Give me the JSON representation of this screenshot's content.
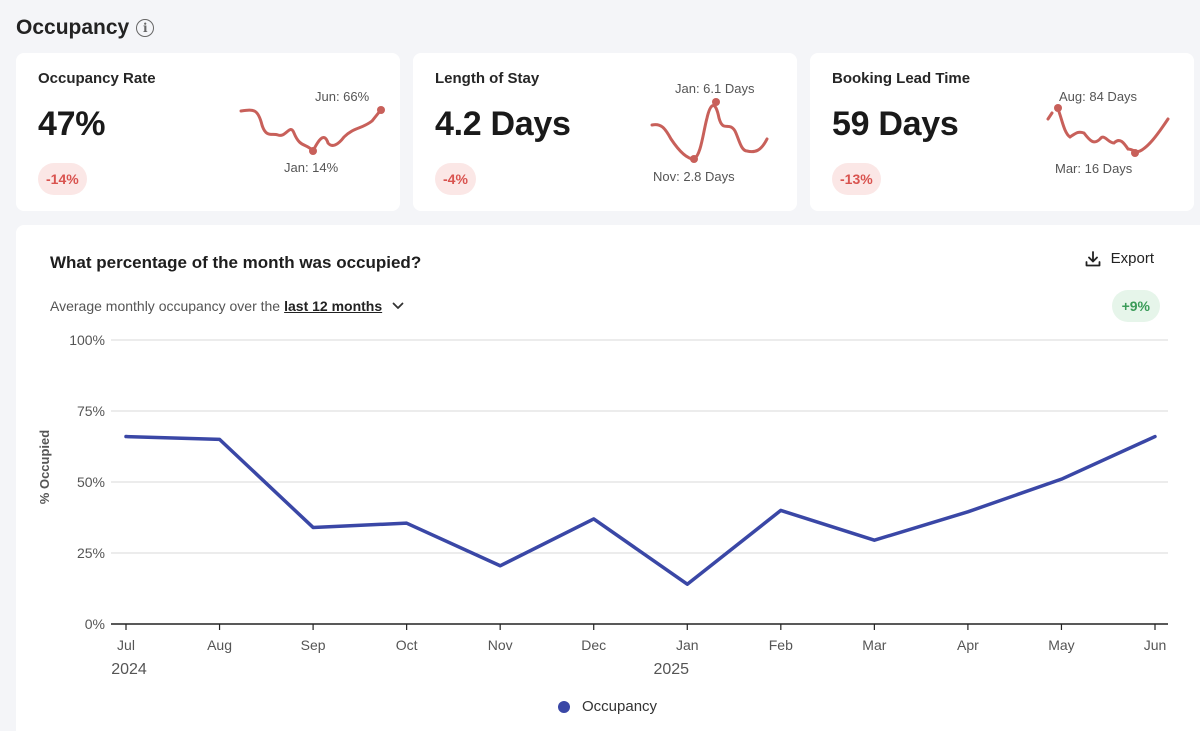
{
  "section": {
    "title": "Occupancy",
    "info_icon": "i"
  },
  "cards": [
    {
      "title": "Occupancy Rate",
      "value": "47%",
      "change": "-14%",
      "label_high": "Jun: 66%",
      "label_low": "Jan: 14%"
    },
    {
      "title": "Length of Stay",
      "value": "4.2 Days",
      "change": "-4%",
      "label_high": "Jan: 6.1 Days",
      "label_low": "Nov: 2.8 Days"
    },
    {
      "title": "Booking Lead Time",
      "value": "59 Days",
      "change": "-13%",
      "label_high": "Aug: 84 Days",
      "label_low": "Mar: 16 Days"
    }
  ],
  "main": {
    "question": "What percentage of the month was occupied?",
    "export_label": "Export",
    "subtitle_prefix": "Average monthly occupancy over the",
    "period": "last 12 months",
    "trend": "+9%"
  },
  "colors": {
    "line": "#3a47a6",
    "spark": "#c8605a",
    "negative": "#d9534f",
    "positive": "#3a9b58"
  },
  "chart_data": {
    "type": "line",
    "title": "What percentage of the month was occupied?",
    "ylabel": "% Occupied",
    "categories": [
      "Jul",
      "Aug",
      "Sep",
      "Oct",
      "Nov",
      "Dec",
      "Jan",
      "Feb",
      "Mar",
      "Apr",
      "May",
      "Jun"
    ],
    "year_labels": [
      {
        "index": 0,
        "label": "2024"
      },
      {
        "index": 6,
        "label": "2025"
      }
    ],
    "y_ticks": [
      "0%",
      "25%",
      "50%",
      "75%",
      "100%"
    ],
    "ylim": [
      0,
      100
    ],
    "series": [
      {
        "name": "Occupancy",
        "values": [
          66,
          65,
          34,
          35.5,
          20.5,
          37,
          14,
          40,
          29.5,
          39.5,
          51,
          66
        ]
      }
    ],
    "grid": true,
    "legend": "bottom-center"
  }
}
